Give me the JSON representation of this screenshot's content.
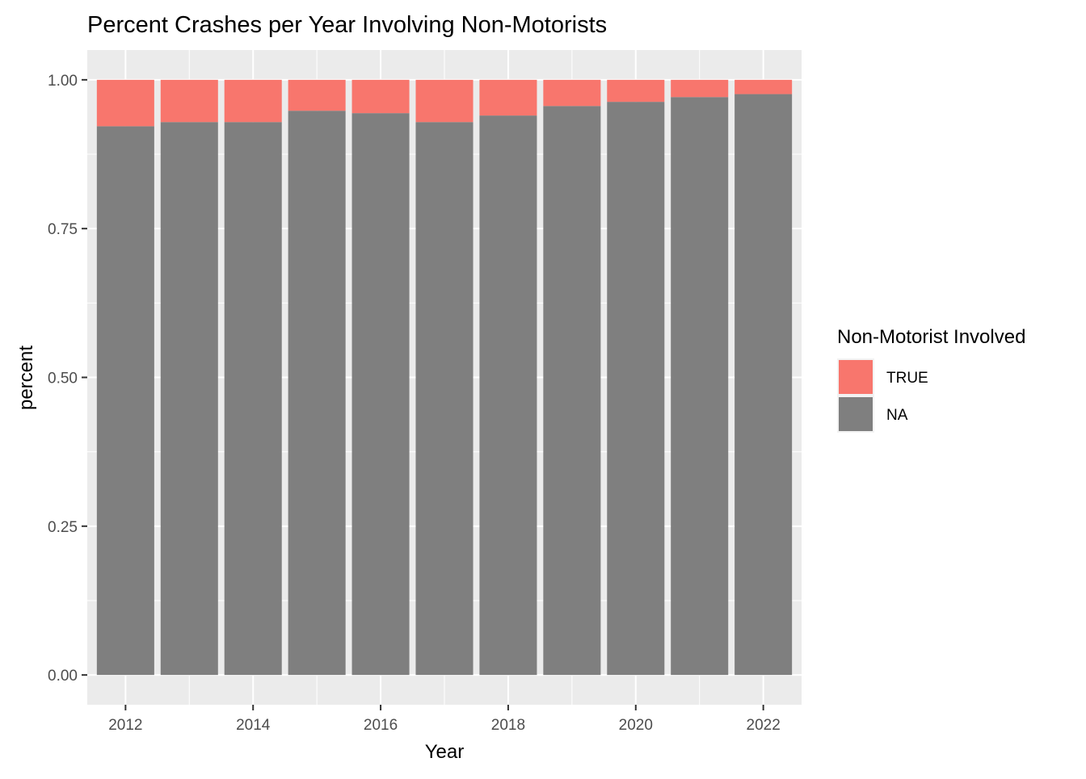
{
  "chart_data": {
    "type": "bar",
    "stacked": true,
    "title": "Percent Crashes per Year Involving Non-Motorists",
    "xlabel": "Year",
    "ylabel": "percent",
    "categories": [
      2012,
      2013,
      2014,
      2015,
      2016,
      2017,
      2018,
      2019,
      2020,
      2021,
      2022
    ],
    "series": [
      {
        "name": "NA",
        "color": "#7f7f7f",
        "values": [
          0.922,
          0.929,
          0.929,
          0.948,
          0.944,
          0.929,
          0.94,
          0.956,
          0.963,
          0.971,
          0.976
        ]
      },
      {
        "name": "TRUE",
        "color": "#f8766d",
        "values": [
          0.078,
          0.071,
          0.071,
          0.052,
          0.056,
          0.071,
          0.06,
          0.044,
          0.037,
          0.029,
          0.024
        ]
      }
    ],
    "x_ticks": [
      2012,
      2014,
      2016,
      2018,
      2020,
      2022
    ],
    "x_tick_labels": [
      "2012",
      "2014",
      "2016",
      "2018",
      "2020",
      "2022"
    ],
    "y_ticks": [
      0,
      0.25,
      0.5,
      0.75,
      1.0
    ],
    "y_tick_labels": [
      "0.00",
      "0.25",
      "0.50",
      "0.75",
      "1.00"
    ],
    "ylim": [
      -0.05,
      1.05
    ],
    "xlim": [
      2011.4,
      2022.6
    ],
    "grid": true,
    "panel_background": "#ebebeb",
    "legend": {
      "title": "Non-Motorist Involved",
      "placement": "right",
      "entries": [
        {
          "label": "TRUE",
          "color": "#f8766d"
        },
        {
          "label": "NA",
          "color": "#7f7f7f"
        }
      ]
    }
  }
}
